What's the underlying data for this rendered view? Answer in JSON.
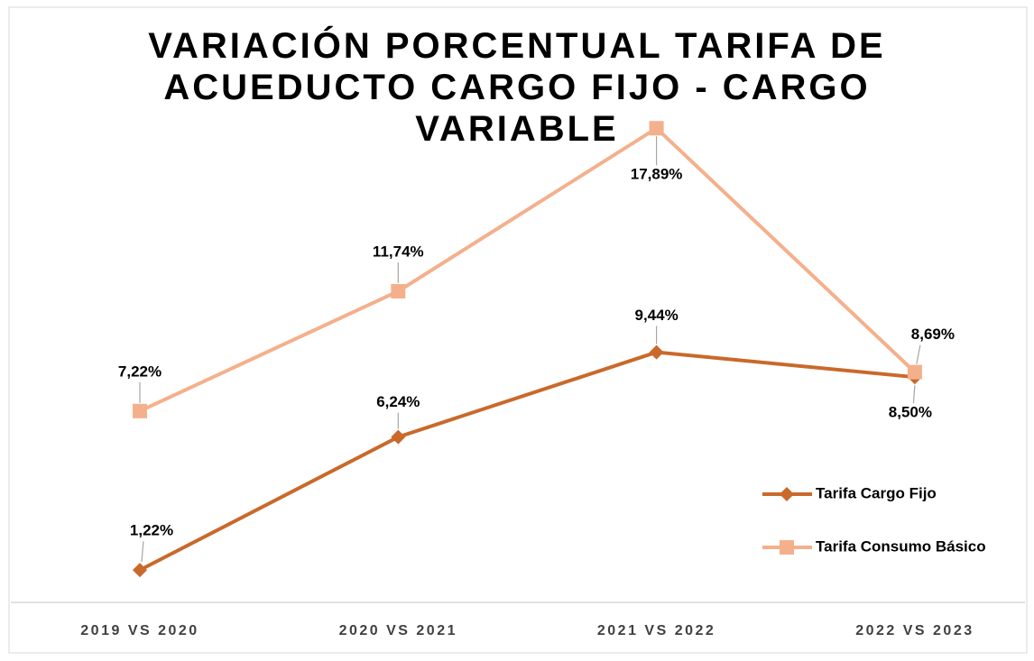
{
  "chart_data": {
    "type": "line",
    "title": "VARIACIÓN PORCENTUAL TARIFA DE ACUEDUCTO CARGO FIJO - CARGO VARIABLE",
    "categories": [
      "2019 VS 2020",
      "2020 VS 2021",
      "2021 VS 2022",
      "2022 VS 2023"
    ],
    "series": [
      {
        "name": "Tarifa Cargo Fijo",
        "color": "#c9692a",
        "values": [
          1.22,
          6.24,
          9.44,
          8.5
        ],
        "value_labels": [
          "1,22%",
          "6,24%",
          "9,44%",
          "8,50%"
        ]
      },
      {
        "name": "Tarifa Consumo Básico",
        "color": "#f4b08c",
        "values": [
          7.22,
          11.74,
          17.89,
          8.69
        ],
        "value_labels": [
          "7,22%",
          "11,74%",
          "17,89%",
          "8,69%"
        ]
      }
    ],
    "ylim": [
      0,
      18
    ],
    "legend": "right"
  }
}
